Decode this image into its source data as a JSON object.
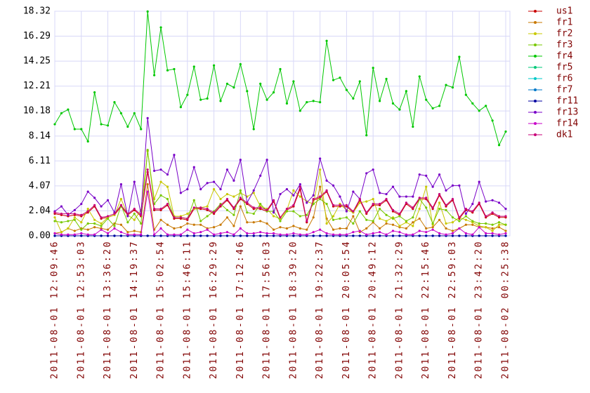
{
  "chart_data": {
    "type": "line",
    "categories": [
      "2011-08-01 12:09:46",
      null,
      null,
      null,
      "2011-08-01 12:53:03",
      null,
      null,
      null,
      "2011-08-01 13:36:20",
      null,
      null,
      null,
      "2011-08-01 14:19:37",
      null,
      null,
      null,
      "2011-08-01 15:02:54",
      null,
      null,
      null,
      "2011-08-01 15:46:11",
      null,
      null,
      null,
      "2011-08-01 16:29:29",
      null,
      null,
      null,
      "2011-08-01 17:12:46",
      null,
      null,
      null,
      "2011-08-01 17:56:03",
      null,
      null,
      null,
      "2011-08-01 18:39:20",
      null,
      null,
      null,
      "2011-08-01 19:22:37",
      null,
      null,
      null,
      "2011-08-01 20:05:54",
      null,
      null,
      null,
      "2011-08-01 20:49:12",
      null,
      null,
      null,
      "2011-08-01 21:32:29",
      null,
      null,
      null,
      "2011-08-01 22:15:46",
      null,
      null,
      null,
      "2011-08-01 22:59:03",
      null,
      null,
      null,
      "2011-08-01 23:42:20",
      null,
      null,
      null,
      "2011-08-02 00:25:38"
    ],
    "ylim": [
      0,
      18.32
    ],
    "yticks": [
      {
        "value": 0,
        "label": "0.00"
      },
      2.04,
      4.07,
      6.11,
      8.14,
      10.18,
      12.21,
      14.25,
      16.29,
      18.32
    ],
    "grid": true,
    "legend": "right",
    "series": [
      {
        "name": "us1",
        "color": "#c80000",
        "values": [
          1.8,
          1.7,
          1.6,
          1.7,
          1.6,
          1.9,
          2.4,
          1.4,
          1.5,
          1.7,
          2.4,
          1.7,
          2.1,
          1.6,
          5.2,
          2.1,
          2.1,
          2.5,
          1.4,
          1.4,
          1.3,
          2.2,
          2.2,
          2.1,
          1.8,
          2.4,
          2.9,
          2.2,
          3.0,
          2.6,
          2.2,
          2.2,
          2.0,
          2.8,
          1.4,
          2.1,
          2.4,
          3.8,
          1.1,
          2.9,
          3.1,
          3.6,
          2.4,
          2.4,
          2.4,
          1.9,
          2.9,
          1.8,
          2.5,
          2.5,
          2.9,
          2.0,
          1.7,
          2.6,
          2.2,
          3.0,
          3.0,
          2.2,
          3.3,
          2.4,
          2.9,
          1.4,
          2.1,
          1.9,
          2.6,
          1.5,
          1.8,
          1.5,
          1.5
        ]
      },
      {
        "name": "fr1",
        "color": "#c87800",
        "values": [
          0.2,
          0.3,
          0.6,
          0.4,
          0.6,
          0.5,
          0.7,
          0.6,
          0.5,
          1.0,
          0.9,
          0.3,
          0.4,
          0.3,
          4.2,
          0.5,
          1.3,
          0.9,
          0.6,
          0.7,
          1.0,
          0.9,
          0.9,
          0.6,
          0.7,
          0.9,
          1.5,
          0.8,
          2.4,
          1.1,
          1.1,
          1.2,
          1.0,
          0.5,
          0.7,
          0.6,
          0.8,
          0.6,
          0.5,
          1.5,
          4.0,
          1.4,
          0.5,
          0.6,
          0.6,
          1.6,
          0.3,
          0.6,
          1.1,
          0.6,
          1.0,
          0.9,
          0.7,
          0.6,
          1.1,
          1.4,
          0.6,
          0.7,
          1.3,
          0.6,
          0.4,
          0.6,
          0.9,
          0.9,
          0.7,
          0.7,
          0.6,
          0.7,
          0.4
        ]
      },
      {
        "name": "fr2",
        "color": "#c8c800",
        "values": [
          1.5,
          0.3,
          0.6,
          1.5,
          1.1,
          2.2,
          1.3,
          1.0,
          1.5,
          1.7,
          3.0,
          1.7,
          1.3,
          2.1,
          6.9,
          3.0,
          4.4,
          4.0,
          1.6,
          1.6,
          1.8,
          2.2,
          2.3,
          2.4,
          3.8,
          3.0,
          3.4,
          3.2,
          3.5,
          3.2,
          3.5,
          2.4,
          2.2,
          1.6,
          1.4,
          2.1,
          3.7,
          3.2,
          2.8,
          2.6,
          5.4,
          1.0,
          1.6,
          2.6,
          2.1,
          1.9,
          2.7,
          2.8,
          3.0,
          1.4,
          1.2,
          1.5,
          0.8,
          1.1,
          0.8,
          2.2,
          4.0,
          0.9,
          2.7,
          1.0,
          1.1,
          1.5,
          1.3,
          1.1,
          0.8,
          0.7,
          0.4,
          0.9,
          0.9
        ]
      },
      {
        "name": "fr3",
        "color": "#78c800",
        "values": [
          1.2,
          1.1,
          1.2,
          1.3,
          0.5,
          1.0,
          1.0,
          0.8,
          1.4,
          0.8,
          2.5,
          1.1,
          1.8,
          1.0,
          7.0,
          2.6,
          3.3,
          3.0,
          1.5,
          1.5,
          1.4,
          2.9,
          1.2,
          1.6,
          2.0,
          2.6,
          2.1,
          1.7,
          3.7,
          1.9,
          1.8,
          2.6,
          2.0,
          2.0,
          1.2,
          2.0,
          2.0,
          1.6,
          1.7,
          2.6,
          3.0,
          2.6,
          1.3,
          1.4,
          1.5,
          1.0,
          2.0,
          1.3,
          1.2,
          2.2,
          1.7,
          1.4,
          1.6,
          1.2,
          1.5,
          3.0,
          2.3,
          1.0,
          2.2,
          2.1,
          1.5,
          1.2,
          1.6,
          1.2,
          1.0,
          1.0,
          0.9,
          1.1,
          0.9
        ]
      },
      {
        "name": "fr4",
        "color": "#00c800",
        "values": [
          9.1,
          10.0,
          10.3,
          8.7,
          8.7,
          7.7,
          11.7,
          9.1,
          9.0,
          10.9,
          10.0,
          8.9,
          10.0,
          8.7,
          18.3,
          13.1,
          17.0,
          13.5,
          13.6,
          10.5,
          11.5,
          13.8,
          11.1,
          11.2,
          13.9,
          11.0,
          12.4,
          12.1,
          14.0,
          11.8,
          8.7,
          12.4,
          11.1,
          11.7,
          13.6,
          10.8,
          12.6,
          10.2,
          10.9,
          11.0,
          10.9,
          15.9,
          12.7,
          12.9,
          11.9,
          11.2,
          12.6,
          8.2,
          13.7,
          11.0,
          12.8,
          10.8,
          10.3,
          11.8,
          8.9,
          13.0,
          11.1,
          10.4,
          10.6,
          12.3,
          12.1,
          14.6,
          11.5,
          10.8,
          10.2,
          10.6,
          9.4,
          7.4,
          8.5
        ]
      },
      {
        "name": "fr5",
        "color": "#00c878",
        "values": [
          0,
          0,
          0,
          0,
          0,
          0,
          0,
          0,
          0,
          0,
          0,
          0,
          0,
          0,
          0,
          0,
          0,
          0,
          0,
          0,
          0,
          0,
          0,
          0,
          0,
          0,
          0,
          0,
          0,
          0,
          0,
          0,
          0,
          0,
          0,
          0,
          0,
          0,
          0,
          0,
          0,
          0,
          0,
          0,
          0,
          0,
          0,
          0,
          0,
          0,
          0,
          0,
          0,
          0,
          0,
          0,
          0,
          0,
          0,
          0,
          0,
          0,
          0,
          0,
          0,
          0,
          0,
          0,
          0
        ]
      },
      {
        "name": "fr6",
        "color": "#00c8c8",
        "values": [
          0,
          0,
          0,
          0,
          0,
          0,
          0,
          0,
          0,
          0,
          0,
          0,
          0,
          0,
          0,
          0,
          0,
          0,
          0,
          0,
          0,
          0,
          0,
          0,
          0,
          0,
          0,
          0,
          0,
          0,
          0,
          0,
          0,
          0,
          0,
          0,
          0,
          0,
          0,
          0,
          0,
          0,
          0,
          0,
          0,
          0,
          0,
          0,
          0,
          0,
          0,
          0,
          0,
          0,
          0,
          0,
          0,
          0,
          0,
          0,
          0,
          0,
          0,
          0,
          0,
          0,
          0,
          0,
          0
        ]
      },
      {
        "name": "fr7",
        "color": "#0078c8",
        "values": [
          0,
          0,
          0,
          0,
          0,
          0,
          0,
          0,
          0,
          0,
          0,
          0,
          0,
          0,
          0,
          0,
          0,
          0,
          0,
          0,
          0,
          0,
          0,
          0,
          0,
          0,
          0,
          0,
          0,
          0,
          0,
          0,
          0,
          0,
          0,
          0,
          0,
          0,
          0,
          0,
          0,
          0,
          0,
          0,
          0,
          0,
          0,
          0,
          0,
          0,
          0,
          0,
          0,
          0,
          0,
          0,
          0,
          0,
          0,
          0,
          0,
          0,
          0,
          0,
          0,
          0,
          0,
          0,
          0
        ]
      },
      {
        "name": "fr11",
        "color": "#0000a0",
        "values": [
          0,
          0,
          0,
          0,
          0,
          0,
          0,
          0,
          0,
          0,
          0,
          0,
          0,
          0,
          0,
          0,
          0,
          0,
          0,
          0,
          0,
          0,
          0,
          0,
          0,
          0,
          0,
          0,
          0,
          0,
          0,
          0,
          0,
          0,
          0,
          0,
          0,
          0,
          0,
          0,
          0,
          0,
          0,
          0,
          0,
          0,
          0,
          0,
          0,
          0,
          0,
          0,
          0,
          0,
          0,
          0,
          0,
          0,
          0,
          0,
          0,
          0,
          0,
          0,
          0,
          0,
          0,
          0,
          0
        ]
      },
      {
        "name": "fr13",
        "color": "#7800c8",
        "values": [
          2.0,
          2.4,
          1.7,
          2.1,
          2.6,
          3.6,
          3.1,
          2.4,
          2.9,
          1.9,
          4.2,
          1.6,
          4.4,
          1.8,
          9.6,
          5.3,
          5.4,
          5.0,
          6.6,
          3.5,
          3.8,
          5.6,
          3.8,
          4.3,
          4.4,
          3.8,
          5.4,
          4.5,
          6.2,
          2.7,
          3.7,
          4.9,
          6.2,
          1.9,
          3.4,
          3.8,
          3.3,
          4.2,
          2.7,
          3.3,
          6.3,
          4.5,
          4.1,
          3.2,
          2.0,
          3.6,
          3.0,
          5.1,
          5.4,
          3.5,
          3.4,
          4.0,
          3.2,
          3.2,
          3.2,
          5.0,
          4.9,
          4.0,
          5.0,
          3.7,
          4.1,
          4.1,
          1.8,
          2.6,
          4.4,
          2.8,
          2.9,
          2.7,
          2.2
        ]
      },
      {
        "name": "fr14",
        "color": "#c800c8",
        "values": [
          0.2,
          0.1,
          0.1,
          0.1,
          0.2,
          0.1,
          0.1,
          0.5,
          0.2,
          0.6,
          0.3,
          0.1,
          0.1,
          0.1,
          3.6,
          0.1,
          0.6,
          0.1,
          0.1,
          0.1,
          0.5,
          0.2,
          0.3,
          0.5,
          0.1,
          0.2,
          0.3,
          0.1,
          0.6,
          0.2,
          0.2,
          0.3,
          0.2,
          0.2,
          0.1,
          0.1,
          0.2,
          0.1,
          0.1,
          0.3,
          0.5,
          0.2,
          0.1,
          0.1,
          0.1,
          0.3,
          0.4,
          0.1,
          0.2,
          0.3,
          0.1,
          0.4,
          0.3,
          0.1,
          0.1,
          0.4,
          0.3,
          0.5,
          0.2,
          0.1,
          0.2,
          0.6,
          0.2,
          0.1,
          0.7,
          0.2,
          0.2,
          0.1,
          0.2
        ]
      },
      {
        "name": "dk1",
        "color": "#c80078",
        "values": [
          1.9,
          1.8,
          1.8,
          1.8,
          1.7,
          2.0,
          2.5,
          1.5,
          1.6,
          1.8,
          2.5,
          1.8,
          2.2,
          1.7,
          5.4,
          2.2,
          2.2,
          2.6,
          1.5,
          1.5,
          1.4,
          2.3,
          2.3,
          2.2,
          1.9,
          2.5,
          3.0,
          2.3,
          3.1,
          2.7,
          2.3,
          2.3,
          2.1,
          2.9,
          1.5,
          2.2,
          2.5,
          4.0,
          1.2,
          3.0,
          3.2,
          3.7,
          2.5,
          2.5,
          2.5,
          2.0,
          3.0,
          1.9,
          2.6,
          2.6,
          3.0,
          2.1,
          1.8,
          2.7,
          2.3,
          3.1,
          3.1,
          2.3,
          3.4,
          2.5,
          3.0,
          1.5,
          2.2,
          2.0,
          2.7,
          1.6,
          1.9,
          1.6,
          1.6
        ]
      }
    ]
  }
}
